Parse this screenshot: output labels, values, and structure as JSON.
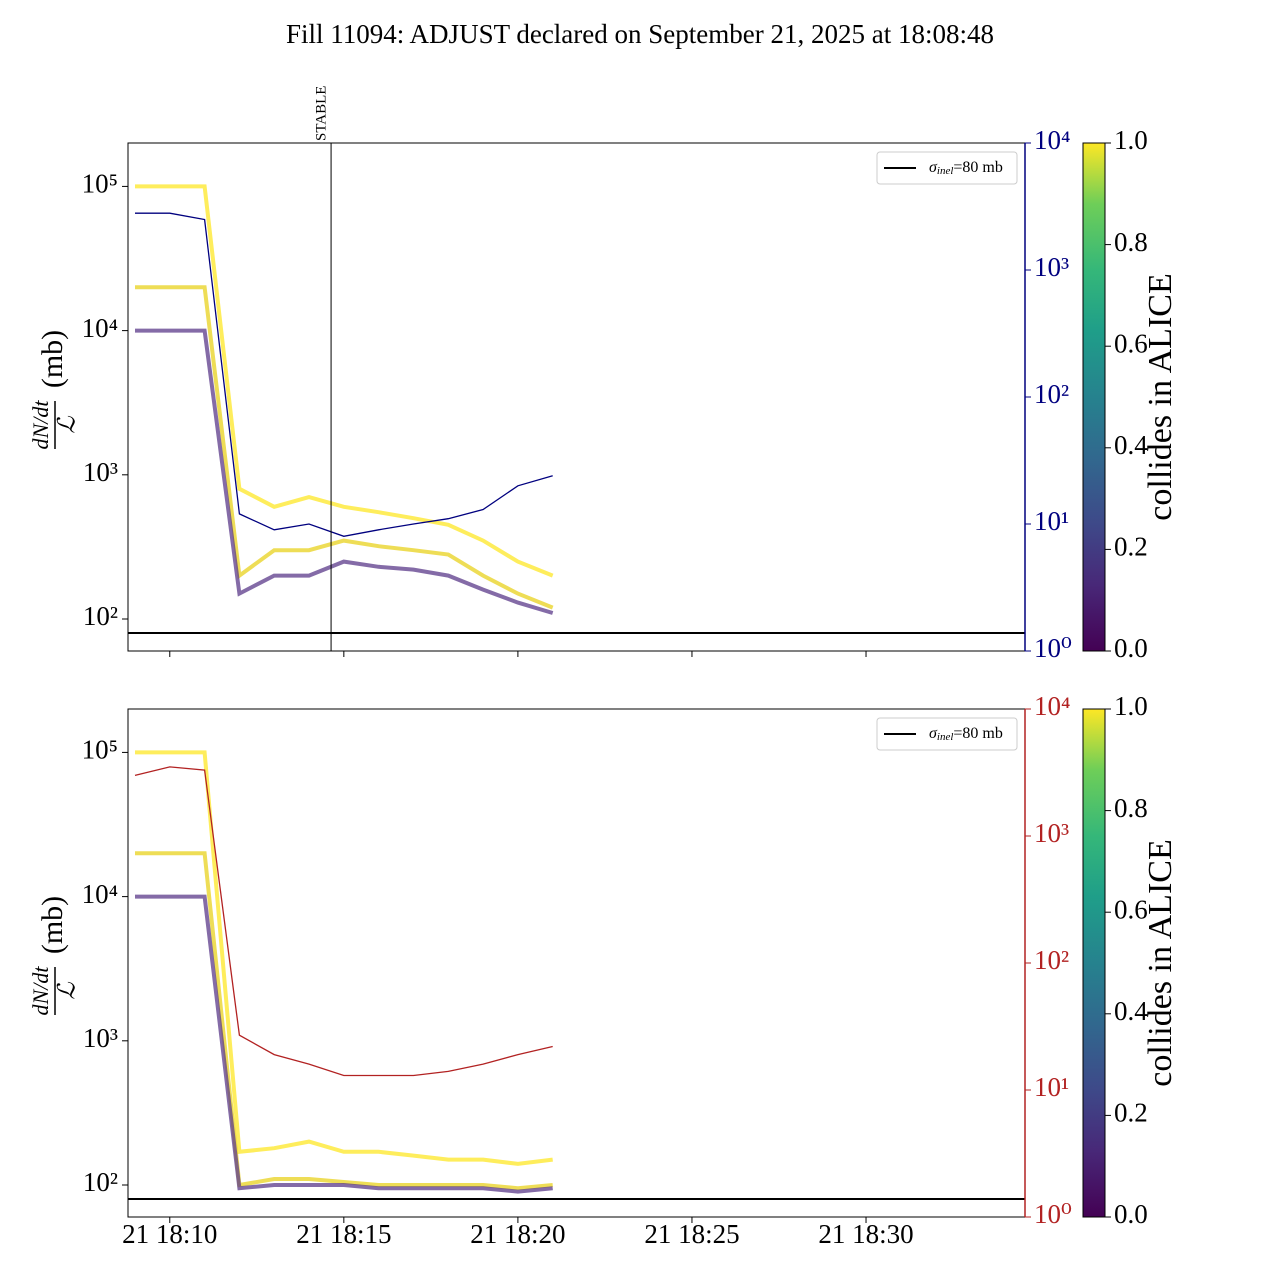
{
  "title": "Fill 11094: ADJUST declared on September 21, 2025 at 18:08:48",
  "chart_data": [
    {
      "type": "line",
      "log_y": true,
      "log_y2": true,
      "ylabel": {
        "numerator": "dN/dt",
        "denominator": "ℒ",
        "unit": "(mb)"
      },
      "x": [
        "21 18:09",
        "21 18:10",
        "21 18:11",
        "21 18:12",
        "21 18:13",
        "21 18:14",
        "21 18:15",
        "21 18:16",
        "21 18:17",
        "21 18:18",
        "21 18:19",
        "21 18:20",
        "21 18:21"
      ],
      "xlim": [
        "21 18:08:48",
        "21 18:34:34"
      ],
      "xticks": [
        "21 18:10",
        "21 18:15",
        "21 18:20",
        "21 18:25",
        "21 18:30"
      ],
      "ylim": [
        60,
        200000
      ],
      "yticks": [
        {
          "value": 100,
          "label": "10²"
        },
        {
          "value": 1000,
          "label": "10³"
        },
        {
          "value": 10000,
          "label": "10⁴"
        },
        {
          "value": 100000,
          "label": "10⁵"
        }
      ],
      "y2lim": [
        1,
        10000
      ],
      "y2color": "#00007f",
      "y2ticks": [
        {
          "value": 1,
          "label": "10⁰"
        },
        {
          "value": 10,
          "label": "10¹"
        },
        {
          "value": 100,
          "label": "10²"
        },
        {
          "value": 1000,
          "label": "10³"
        },
        {
          "value": 10000,
          "label": "10⁴"
        }
      ],
      "series": [
        {
          "color": "#fde725",
          "values": [
            100000,
            100000,
            100000,
            800,
            600,
            700,
            600,
            550,
            500,
            450,
            350,
            250,
            200
          ]
        },
        {
          "color": "#e8d21d",
          "values": [
            20000,
            20000,
            20000,
            200,
            300,
            300,
            350,
            320,
            300,
            280,
            200,
            150,
            120
          ]
        },
        {
          "color": "#5b3a8a",
          "values": [
            10000,
            10000,
            10000,
            150,
            200,
            200,
            250,
            230,
            220,
            200,
            160,
            130,
            110
          ]
        },
        {
          "color": "#00007f",
          "axis": "y2",
          "values": [
            2800,
            2800,
            2500,
            12,
            9,
            10,
            8,
            9,
            10,
            11,
            13,
            20,
            24
          ]
        }
      ],
      "hline": {
        "value": 80,
        "color": "#000000",
        "label": {
          "symbol": "σ",
          "subscript": "inel",
          "text": "=80 mb"
        }
      },
      "vline": {
        "x": "21 18:14:38",
        "text": "STABLE"
      },
      "colorbar": {
        "label": "collides in ALICE",
        "lim": [
          0,
          1
        ],
        "ticks": [
          {
            "value": 0,
            "label": "0.0"
          },
          {
            "value": 0.2,
            "label": "0.2"
          },
          {
            "value": 0.4,
            "label": "0.4"
          },
          {
            "value": 0.6,
            "label": "0.6"
          },
          {
            "value": 0.8,
            "label": "0.8"
          },
          {
            "value": 1,
            "label": "1.0"
          }
        ]
      }
    },
    {
      "type": "line",
      "log_y": true,
      "log_y2": true,
      "ylabel": {
        "numerator": "dN/dt",
        "denominator": "ℒ",
        "unit": "(mb)"
      },
      "x": [
        "21 18:09",
        "21 18:10",
        "21 18:11",
        "21 18:12",
        "21 18:13",
        "21 18:14",
        "21 18:15",
        "21 18:16",
        "21 18:17",
        "21 18:18",
        "21 18:19",
        "21 18:20",
        "21 18:21"
      ],
      "xlim": [
        "21 18:08:48",
        "21 18:34:34"
      ],
      "xticks": [
        "21 18:10",
        "21 18:15",
        "21 18:20",
        "21 18:25",
        "21 18:30"
      ],
      "ylim": [
        60,
        200000
      ],
      "yticks": [
        {
          "value": 100,
          "label": "10²"
        },
        {
          "value": 1000,
          "label": "10³"
        },
        {
          "value": 10000,
          "label": "10⁴"
        },
        {
          "value": 100000,
          "label": "10⁵"
        }
      ],
      "y2lim": [
        1,
        10000
      ],
      "y2color": "#b22222",
      "y2ticks": [
        {
          "value": 1,
          "label": "10⁰"
        },
        {
          "value": 10,
          "label": "10¹"
        },
        {
          "value": 100,
          "label": "10²"
        },
        {
          "value": 1000,
          "label": "10³"
        },
        {
          "value": 10000,
          "label": "10⁴"
        }
      ],
      "series": [
        {
          "color": "#fde725",
          "values": [
            100000,
            100000,
            100000,
            170,
            180,
            200,
            170,
            170,
            160,
            150,
            150,
            140,
            150
          ]
        },
        {
          "color": "#e8d21d",
          "values": [
            20000,
            20000,
            20000,
            100,
            110,
            110,
            105,
            100,
            100,
            100,
            100,
            95,
            100
          ]
        },
        {
          "color": "#5b3a8a",
          "values": [
            10000,
            10000,
            10000,
            95,
            100,
            100,
            100,
            95,
            95,
            95,
            95,
            90,
            95
          ]
        },
        {
          "color": "#b22222",
          "axis": "y2",
          "values": [
            3000,
            3500,
            3300,
            27,
            19,
            16,
            13,
            13,
            13,
            14,
            16,
            19,
            22
          ]
        }
      ],
      "hline": {
        "value": 80,
        "color": "#000000",
        "label": {
          "symbol": "σ",
          "subscript": "inel",
          "text": "=80 mb"
        }
      },
      "colorbar": {
        "label": "collides in ALICE",
        "lim": [
          0,
          1
        ],
        "ticks": [
          {
            "value": 0,
            "label": "0.0"
          },
          {
            "value": 0.2,
            "label": "0.2"
          },
          {
            "value": 0.4,
            "label": "0.4"
          },
          {
            "value": 0.6,
            "label": "0.6"
          },
          {
            "value": 0.8,
            "label": "0.8"
          },
          {
            "value": 1,
            "label": "1.0"
          }
        ]
      }
    }
  ]
}
